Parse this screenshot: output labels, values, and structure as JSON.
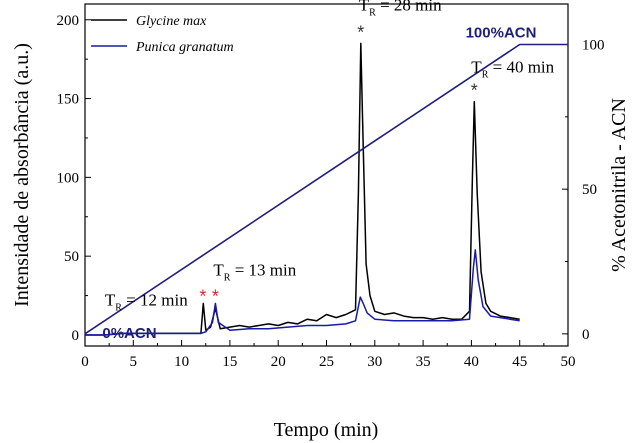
{
  "chart_data": {
    "type": "line",
    "xlabel": "Tempo (min)",
    "ylabel": "Intensidade de absorbância (a.u.)",
    "y2label": "% Acetonitrila - ACN",
    "xlim": [
      0,
      50
    ],
    "ylim": [
      -7,
      210
    ],
    "y2lim": [
      -4.2,
      114
    ],
    "x_ticks": [
      0,
      5,
      10,
      15,
      20,
      25,
      30,
      35,
      40,
      45,
      50
    ],
    "y_ticks": [
      0,
      50,
      100,
      150,
      200
    ],
    "y2_ticks": [
      0,
      50,
      100
    ],
    "legend_position": "top-left",
    "series": [
      {
        "name": "Glycine max",
        "color": "#000000",
        "points": [
          [
            0,
            0
          ],
          [
            2,
            0
          ],
          [
            4,
            1
          ],
          [
            6,
            1
          ],
          [
            8,
            1
          ],
          [
            10,
            1
          ],
          [
            12,
            1
          ],
          [
            12.25,
            20
          ],
          [
            12.5,
            3
          ],
          [
            13,
            5
          ],
          [
            13.5,
            17
          ],
          [
            14,
            4
          ],
          [
            15,
            5
          ],
          [
            16,
            6
          ],
          [
            17,
            5
          ],
          [
            18,
            6
          ],
          [
            19,
            7
          ],
          [
            20,
            6
          ],
          [
            21,
            8
          ],
          [
            22,
            7
          ],
          [
            23,
            10
          ],
          [
            24,
            9
          ],
          [
            25,
            13
          ],
          [
            26,
            11
          ],
          [
            27,
            13
          ],
          [
            28,
            16
          ],
          [
            28.3,
            90
          ],
          [
            28.55,
            185
          ],
          [
            28.8,
            120
          ],
          [
            29.1,
            45
          ],
          [
            29.5,
            25
          ],
          [
            30,
            15
          ],
          [
            31,
            13
          ],
          [
            32,
            14
          ],
          [
            33,
            12
          ],
          [
            34,
            11
          ],
          [
            35,
            11
          ],
          [
            36,
            10
          ],
          [
            37,
            11
          ],
          [
            38,
            10
          ],
          [
            39,
            10
          ],
          [
            39.8,
            15
          ],
          [
            40.1,
            100
          ],
          [
            40.3,
            148
          ],
          [
            40.6,
            90
          ],
          [
            41,
            40
          ],
          [
            41.5,
            20
          ],
          [
            42,
            15
          ],
          [
            43,
            12
          ],
          [
            44,
            11
          ],
          [
            45,
            10
          ]
        ]
      },
      {
        "name": "Punica granatum",
        "color": "#1a1aa8",
        "points": [
          [
            0,
            0
          ],
          [
            2,
            0
          ],
          [
            4,
            1
          ],
          [
            6,
            1
          ],
          [
            8,
            1
          ],
          [
            10,
            1
          ],
          [
            12,
            1
          ],
          [
            12.5,
            2
          ],
          [
            13.2,
            8
          ],
          [
            13.5,
            20
          ],
          [
            13.8,
            8
          ],
          [
            15,
            3
          ],
          [
            17,
            4
          ],
          [
            19,
            4
          ],
          [
            21,
            5
          ],
          [
            23,
            6
          ],
          [
            25,
            6
          ],
          [
            27,
            7
          ],
          [
            28,
            9
          ],
          [
            28.5,
            24
          ],
          [
            28.8,
            20
          ],
          [
            29.2,
            14
          ],
          [
            30,
            10
          ],
          [
            32,
            9
          ],
          [
            34,
            9
          ],
          [
            36,
            9
          ],
          [
            38,
            9
          ],
          [
            39.8,
            10
          ],
          [
            40.2,
            42
          ],
          [
            40.4,
            54
          ],
          [
            40.7,
            35
          ],
          [
            41.2,
            18
          ],
          [
            42,
            12
          ],
          [
            43,
            11
          ],
          [
            44,
            10
          ],
          [
            45,
            9
          ]
        ]
      },
      {
        "name": "",
        "color": "#1f1f7a",
        "axis": "right",
        "points": [
          [
            0,
            0
          ],
          [
            45,
            100
          ],
          [
            50,
            100
          ]
        ]
      }
    ],
    "annotations": {
      "tr12": {
        "sym": "T",
        "sub": "R",
        "rest": " = 12 min",
        "x": 12.2,
        "y": 20
      },
      "tr13": {
        "sym": "T",
        "sub": "R",
        "rest": " = 13 min",
        "x": 13.5,
        "y": 20
      },
      "tr28": {
        "sym": "T",
        "sub": "R",
        "rest": " = 28 min",
        "x": 28.55,
        "y": 185
      },
      "tr40": {
        "sym": "T",
        "sub": "R",
        "rest": " = 40 min",
        "x": 40.3,
        "y": 148
      },
      "acn_start": "0%ACN",
      "acn_end": "100%ACN",
      "peak_marker": "*",
      "marker_black": "#333333",
      "marker_red": "#d22b2b"
    }
  }
}
